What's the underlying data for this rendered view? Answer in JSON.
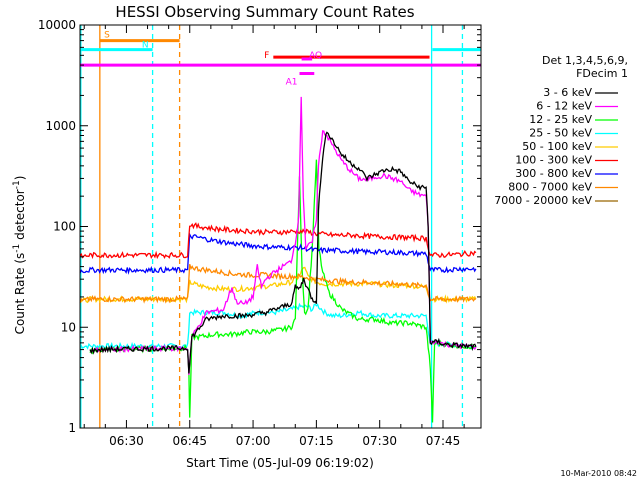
{
  "chart_data": {
    "type": "line",
    "title": "HESSI Observing Summary Count Rates",
    "xlabel": "Start Time (05-Jul-09 06:19:02)",
    "ylabel_main": "Count Rate (s",
    "ylabel_sup1": "-1",
    "ylabel_mid": " detector",
    "ylabel_sup2": "-1",
    "ylabel_end": ")",
    "x_unit": "minutes after 06:19:02",
    "xlim": [
      0,
      95
    ],
    "ylim": [
      1,
      10000
    ],
    "yscale": "log",
    "x_ticks": [
      {
        "value": 11,
        "label": "06:30"
      },
      {
        "value": 26,
        "label": "06:45"
      },
      {
        "value": 41,
        "label": "07:00"
      },
      {
        "value": 56,
        "label": "07:15"
      },
      {
        "value": 71,
        "label": "07:30"
      },
      {
        "value": 86,
        "label": "07:45"
      }
    ],
    "y_ticks": [
      {
        "value": 1,
        "label": "1"
      },
      {
        "value": 10,
        "label": "10"
      },
      {
        "value": 100,
        "label": "100"
      },
      {
        "value": 1000,
        "label": "1000"
      },
      {
        "value": 10000,
        "label": "10000"
      }
    ],
    "legend_header": [
      "Det 1,3,4,5,6,9,",
      "FDecim 1"
    ],
    "legend_position": "right",
    "grid": false,
    "series": [
      {
        "name": "3 - 6 keV",
        "color": "#000000",
        "points": [
          [
            2.4,
            5.8
          ],
          [
            4.6,
            6.0
          ],
          [
            24,
            6.2
          ],
          [
            25.5,
            6.2
          ],
          [
            25.8,
            3.5
          ],
          [
            26.5,
            8
          ],
          [
            30,
            12
          ],
          [
            34,
            13
          ],
          [
            39,
            13
          ],
          [
            44,
            14
          ],
          [
            48,
            16
          ],
          [
            50,
            17
          ],
          [
            51,
            25
          ],
          [
            52,
            24
          ],
          [
            53,
            30
          ],
          [
            54,
            24
          ],
          [
            55,
            19
          ],
          [
            56,
            18
          ],
          [
            56.5,
            150
          ],
          [
            57.5,
            500
          ],
          [
            58.5,
            900
          ],
          [
            60,
            700
          ],
          [
            62,
            520
          ],
          [
            64,
            430
          ],
          [
            66,
            380
          ],
          [
            68,
            300
          ],
          [
            70,
            330
          ],
          [
            72,
            360
          ],
          [
            74,
            370
          ],
          [
            76,
            350
          ],
          [
            78,
            280
          ],
          [
            80,
            250
          ],
          [
            82,
            240
          ],
          [
            82.5,
            100
          ],
          [
            83,
            7
          ],
          [
            85,
            7.2
          ],
          [
            86,
            6.8
          ],
          [
            91,
            6.5
          ],
          [
            93.8,
            6.4
          ]
        ]
      },
      {
        "name": "6 - 12 keV",
        "color": "#ff00ff",
        "points": [
          [
            2.4,
            5.8
          ],
          [
            4.6,
            6.0
          ],
          [
            24,
            6.2
          ],
          [
            25.5,
            6.2
          ],
          [
            25.8,
            3.5
          ],
          [
            26.5,
            8
          ],
          [
            30,
            14
          ],
          [
            34,
            15
          ],
          [
            36,
            25
          ],
          [
            37,
            18
          ],
          [
            39,
            17
          ],
          [
            41,
            20
          ],
          [
            42,
            40
          ],
          [
            43,
            25
          ],
          [
            44,
            30
          ],
          [
            46,
            35
          ],
          [
            48,
            40
          ],
          [
            50,
            45
          ],
          [
            51,
            70
          ],
          [
            51.8,
            120
          ],
          [
            52.4,
            2000
          ],
          [
            52.9,
            200
          ],
          [
            53.5,
            60
          ],
          [
            55,
            70
          ],
          [
            56,
            120
          ],
          [
            56.5,
            400
          ],
          [
            57.5,
            900
          ],
          [
            58.5,
            800
          ],
          [
            60,
            620
          ],
          [
            62,
            450
          ],
          [
            64,
            360
          ],
          [
            66,
            300
          ],
          [
            68,
            290
          ],
          [
            70,
            310
          ],
          [
            72,
            320
          ],
          [
            74,
            300
          ],
          [
            76,
            280
          ],
          [
            78,
            230
          ],
          [
            80,
            210
          ],
          [
            82,
            200
          ],
          [
            82.5,
            100
          ],
          [
            83,
            7
          ],
          [
            85,
            7.2
          ],
          [
            86,
            6.8
          ],
          [
            91,
            6.5
          ],
          [
            93.8,
            6.4
          ]
        ]
      },
      {
        "name": "12 - 25 keV",
        "color": "#00ff00",
        "points": [
          [
            2.4,
            5.8
          ],
          [
            4.6,
            6.0
          ],
          [
            24,
            6.2
          ],
          [
            25.5,
            6.2
          ],
          [
            25.8,
            3.5
          ],
          [
            26,
            1.2
          ],
          [
            26.5,
            8
          ],
          [
            28,
            8
          ],
          [
            32,
            8.5
          ],
          [
            36,
            8.5
          ],
          [
            40,
            9
          ],
          [
            44,
            9
          ],
          [
            48,
            9.5
          ],
          [
            50,
            10
          ],
          [
            51,
            12
          ],
          [
            52,
            300
          ],
          [
            52.6,
            40
          ],
          [
            53.2,
            14
          ],
          [
            54,
            15
          ],
          [
            55,
            60
          ],
          [
            56,
            450
          ],
          [
            56.6,
            60
          ],
          [
            57.5,
            35
          ],
          [
            59,
            22
          ],
          [
            62,
            15
          ],
          [
            66,
            12
          ],
          [
            70,
            12
          ],
          [
            74,
            11
          ],
          [
            78,
            11
          ],
          [
            82,
            10
          ],
          [
            83,
            4
          ],
          [
            83.5,
            1.1
          ],
          [
            84,
            7
          ],
          [
            86,
            6.8
          ],
          [
            91,
            6.5
          ],
          [
            93.8,
            6.4
          ]
        ]
      },
      {
        "name": "25 - 50 keV",
        "color": "#00ffff",
        "points": [
          [
            0,
            6.5
          ],
          [
            2.4,
            6.5
          ],
          [
            24,
            6.5
          ],
          [
            25.5,
            6.5
          ],
          [
            26,
            14
          ],
          [
            30,
            14
          ],
          [
            34,
            14
          ],
          [
            38,
            13
          ],
          [
            42,
            14
          ],
          [
            46,
            14
          ],
          [
            50,
            15
          ],
          [
            52,
            16
          ],
          [
            54,
            16
          ],
          [
            55,
            15
          ],
          [
            56,
            17
          ],
          [
            58,
            14
          ],
          [
            60,
            13
          ],
          [
            62,
            13
          ],
          [
            66,
            14
          ],
          [
            70,
            13
          ],
          [
            74,
            13
          ],
          [
            78,
            13
          ],
          [
            82,
            13
          ],
          [
            83,
            7
          ],
          [
            86,
            6.8
          ],
          [
            91,
            6.6
          ],
          [
            93.8,
            6.5
          ]
        ]
      },
      {
        "name": "50 - 100 keV",
        "color": "#ffcc00",
        "points": [
          [
            0,
            18
          ],
          [
            2.4,
            19
          ],
          [
            24,
            19
          ],
          [
            25.5,
            19
          ],
          [
            26,
            28
          ],
          [
            28,
            26
          ],
          [
            30,
            25
          ],
          [
            34,
            24
          ],
          [
            38,
            24
          ],
          [
            42,
            25
          ],
          [
            46,
            26
          ],
          [
            48,
            27
          ],
          [
            50,
            28
          ],
          [
            52,
            32
          ],
          [
            53,
            40
          ],
          [
            54,
            32
          ],
          [
            56,
            28
          ],
          [
            58,
            27
          ],
          [
            62,
            27
          ],
          [
            66,
            27
          ],
          [
            70,
            27
          ],
          [
            74,
            26
          ],
          [
            78,
            26
          ],
          [
            82,
            25
          ],
          [
            83,
            19
          ],
          [
            86,
            19
          ],
          [
            91,
            19
          ],
          [
            93.8,
            19
          ]
        ]
      },
      {
        "name": "100 - 300 keV",
        "color": "#ff0000",
        "points": [
          [
            0,
            50
          ],
          [
            2.4,
            52
          ],
          [
            24,
            52
          ],
          [
            25.5,
            52
          ],
          [
            26,
            105
          ],
          [
            28,
            100
          ],
          [
            32,
            95
          ],
          [
            36,
            92
          ],
          [
            40,
            90
          ],
          [
            44,
            88
          ],
          [
            48,
            88
          ],
          [
            52,
            90
          ],
          [
            54,
            88
          ],
          [
            56,
            85
          ],
          [
            60,
            82
          ],
          [
            64,
            82
          ],
          [
            68,
            80
          ],
          [
            72,
            79
          ],
          [
            76,
            78
          ],
          [
            80,
            77
          ],
          [
            82,
            76
          ],
          [
            83,
            52
          ],
          [
            86,
            52
          ],
          [
            90,
            53
          ],
          [
            93.8,
            55
          ]
        ]
      },
      {
        "name": "300 - 800 keV",
        "color": "#0000ff",
        "points": [
          [
            0,
            36
          ],
          [
            2.4,
            37
          ],
          [
            24,
            37
          ],
          [
            25.5,
            37
          ],
          [
            26,
            80
          ],
          [
            28,
            78
          ],
          [
            32,
            72
          ],
          [
            36,
            68
          ],
          [
            40,
            65
          ],
          [
            44,
            63
          ],
          [
            48,
            62
          ],
          [
            52,
            62
          ],
          [
            54,
            60
          ],
          [
            56,
            58
          ],
          [
            60,
            58
          ],
          [
            64,
            57
          ],
          [
            68,
            56
          ],
          [
            72,
            56
          ],
          [
            76,
            55
          ],
          [
            80,
            54
          ],
          [
            82,
            54
          ],
          [
            83,
            37
          ],
          [
            86,
            37
          ],
          [
            90,
            38
          ],
          [
            93.8,
            38
          ]
        ]
      },
      {
        "name": "800 - 7000 keV",
        "color": "#ff8800",
        "points": [
          [
            0,
            18
          ],
          [
            2.4,
            19
          ],
          [
            24,
            19
          ],
          [
            25.5,
            19
          ],
          [
            26,
            40
          ],
          [
            28,
            38
          ],
          [
            32,
            36
          ],
          [
            36,
            34
          ],
          [
            40,
            33
          ],
          [
            44,
            33
          ],
          [
            48,
            32
          ],
          [
            52,
            32
          ],
          [
            54,
            31
          ],
          [
            56,
            30
          ],
          [
            60,
            29
          ],
          [
            64,
            28
          ],
          [
            68,
            28
          ],
          [
            72,
            27
          ],
          [
            76,
            27
          ],
          [
            80,
            26
          ],
          [
            82,
            26
          ],
          [
            83,
            19
          ],
          [
            86,
            19
          ],
          [
            90,
            19
          ],
          [
            93.8,
            19
          ]
        ]
      },
      {
        "name": "7000 - 20000 keV",
        "color": "#996600",
        "points": []
      }
    ],
    "annotations": [
      {
        "label": "S",
        "color": "#ff8800",
        "start": 4.7,
        "end": 23.6,
        "level": 7000
      },
      {
        "label": "N",
        "color": "#00ffff",
        "start": 0,
        "end": 17.2,
        "level": 5700
      },
      {
        "label": "",
        "color": "#00ffff",
        "start": 83.5,
        "end": 95,
        "level": 5700
      },
      {
        "label": "F",
        "color": "#ff0000",
        "start": 45.8,
        "end": 82.8,
        "level": 4800
      },
      {
        "label": "AQ",
        "color": "#ff00ff",
        "start": 52.5,
        "end": 55,
        "level": 4600
      },
      {
        "label": "",
        "color": "#ff00ff",
        "start": 0,
        "end": 95,
        "level": 4000
      },
      {
        "label": "A1",
        "color": "#ff00ff",
        "start": 52,
        "end": 55.5,
        "level": 3300
      }
    ],
    "vlines": [
      {
        "x": 4.7,
        "color": "#ff8800",
        "dash": false
      },
      {
        "x": 17.2,
        "color": "#00ffff",
        "dash": true
      },
      {
        "x": 23.6,
        "color": "#ff8800",
        "dash": true
      },
      {
        "x": 83.3,
        "color": "#00ffff",
        "dash": false
      },
      {
        "x": 90.6,
        "color": "#00ffff",
        "dash": true
      },
      {
        "x": 0.2,
        "color": "#00ffff",
        "dash": false
      }
    ]
  },
  "footer_timestamp": "10-Mar-2010 08:42"
}
